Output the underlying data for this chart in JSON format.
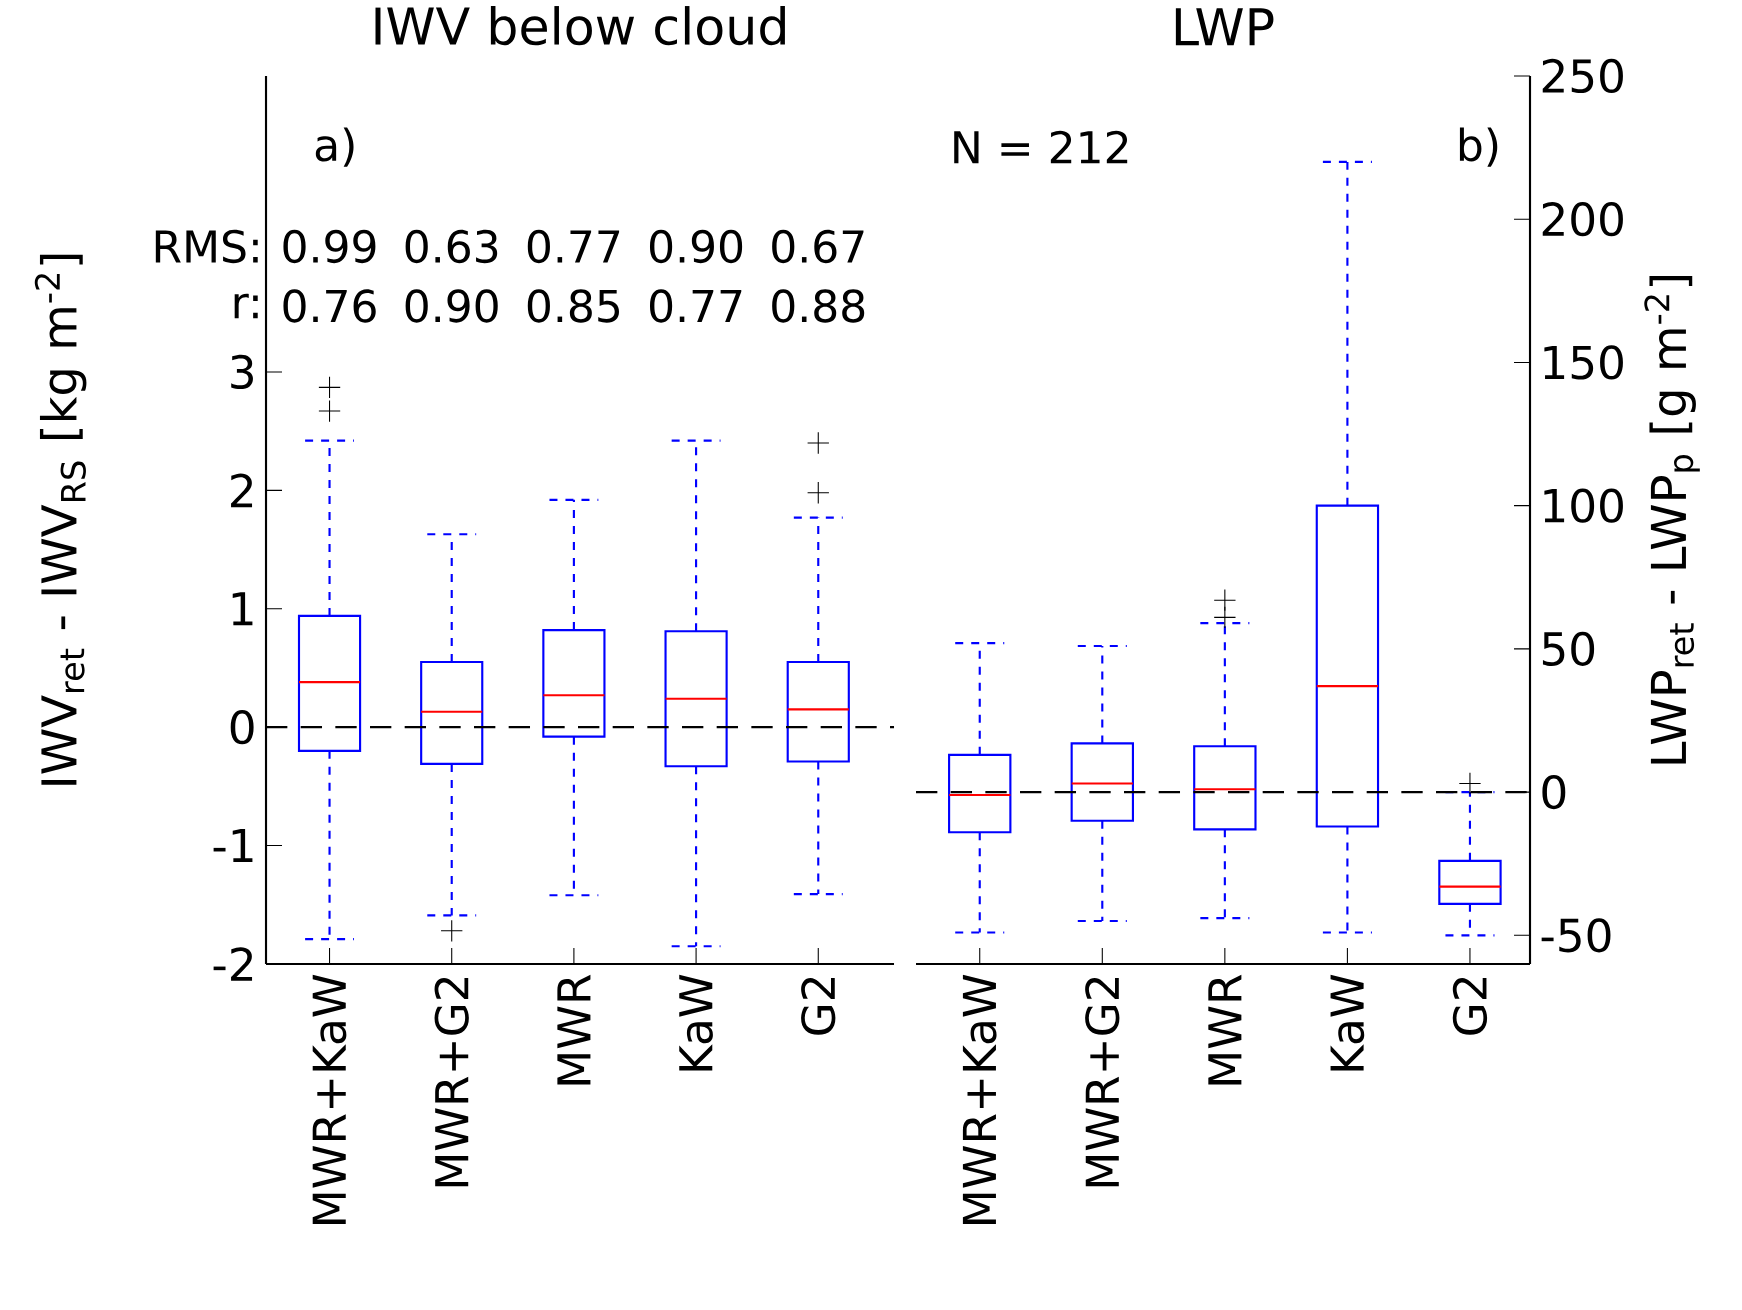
{
  "chart_data": [
    {
      "type": "box",
      "title": "IWV below cloud",
      "ylabel": "IWV$_{ret}$ - IWV$_{RS}$ [kg m$^{-2}$]",
      "categories": [
        "MWR+KaW",
        "MWR+G2",
        "MWR",
        "KaW",
        "G2"
      ],
      "series": [
        {
          "color": "#0000ff",
          "boxes": [
            {
              "low": -1.79,
              "q1": -0.2,
              "median": 0.38,
              "q3": 0.94,
              "high": 2.42,
              "outliers": [
                2.67,
                2.87
              ]
            },
            {
              "low": -1.59,
              "q1": -0.31,
              "median": 0.13,
              "q3": 0.55,
              "high": 1.63,
              "outliers": [
                -1.72
              ]
            },
            {
              "low": -1.42,
              "q1": -0.08,
              "median": 0.27,
              "q3": 0.82,
              "high": 1.92
            },
            {
              "low": -1.85,
              "q1": -0.33,
              "median": 0.24,
              "q3": 0.81,
              "high": 2.42
            },
            {
              "low": -1.41,
              "q1": -0.29,
              "median": 0.15,
              "q3": 0.55,
              "high": 1.77,
              "outliers": [
                1.98,
                2.4
              ]
            }
          ]
        }
      ],
      "ylim": [
        -2,
        5.5
      ],
      "yticks": [
        -2,
        -1,
        0,
        1,
        2,
        3
      ],
      "ref_lines": [
        {
          "axis": "y",
          "value": 0,
          "color": "#000000",
          "line_style": "dashed"
        }
      ],
      "annotations": [
        "a)",
        "RMS:",
        "r:",
        "0.99",
        "0.63",
        "0.77",
        "0.90",
        "0.67",
        "0.76",
        "0.90",
        "0.85",
        "0.77",
        "0.88"
      ]
    },
    {
      "type": "box",
      "title": "LWP",
      "y2label": "LWP$_{ret}$ - LWP$_{p}$ [g m$^{-2}$]",
      "categories": [
        "MWR+KaW",
        "MWR+G2",
        "MWR",
        "KaW",
        "G2"
      ],
      "series": [
        {
          "color": "#0000ff",
          "axis": "y2",
          "boxes": [
            {
              "low": -49,
              "q1": -14,
              "median": -1,
              "q3": 13,
              "high": 52
            },
            {
              "low": -45,
              "q1": -10,
              "median": 3,
              "q3": 17,
              "high": 51
            },
            {
              "low": -44,
              "q1": -13,
              "median": 1,
              "q3": 16,
              "high": 59,
              "outliers": [
                61,
                67
              ]
            },
            {
              "low": -49,
              "q1": -12,
              "median": 37,
              "q3": 100,
              "high": 220
            },
            {
              "low": -50,
              "q1": -39,
              "median": -33,
              "q3": -24,
              "high": 0,
              "outliers": [
                3
              ]
            }
          ]
        }
      ],
      "y2lim": [
        -60,
        250
      ],
      "y2ticks": [
        -50,
        0,
        50,
        100,
        150,
        200,
        250
      ],
      "ref_lines": [
        {
          "axis": "y2",
          "value": 0,
          "color": "#000000",
          "line_style": "dashed"
        }
      ],
      "annotations": [
        "N = 212",
        "b)"
      ]
    }
  ]
}
